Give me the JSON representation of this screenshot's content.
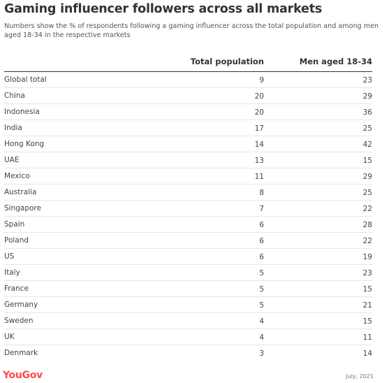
{
  "title": "Gaming influencer followers across all markets",
  "subtitle": "Numbers show the % of respondents following a gaming influencer across the total population and among men aged 18-34 in the respective markets",
  "columns": {
    "total": "Total population",
    "men": "Men aged 18-34"
  },
  "brand": {
    "name": "YouGov",
    "color": "#ff4b4b"
  },
  "date": "July, 2021",
  "chart_data": {
    "type": "table",
    "title": "Gaming influencer followers across all markets",
    "columns": [
      "Total population",
      "Men aged 18-34"
    ],
    "rows": [
      {
        "country": "Global total",
        "total": 9,
        "men": 23
      },
      {
        "country": "China",
        "total": 20,
        "men": 29
      },
      {
        "country": "Indonesia",
        "total": 20,
        "men": 36
      },
      {
        "country": "India",
        "total": 17,
        "men": 25
      },
      {
        "country": "Hong Kong",
        "total": 14,
        "men": 42
      },
      {
        "country": "UAE",
        "total": 13,
        "men": 15
      },
      {
        "country": "Mexico",
        "total": 11,
        "men": 29
      },
      {
        "country": "Australia",
        "total": 8,
        "men": 25
      },
      {
        "country": "Singapore",
        "total": 7,
        "men": 22
      },
      {
        "country": "Spain",
        "total": 6,
        "men": 28
      },
      {
        "country": "Poland",
        "total": 6,
        "men": 22
      },
      {
        "country": "US",
        "total": 6,
        "men": 19
      },
      {
        "country": "Italy",
        "total": 5,
        "men": 23
      },
      {
        "country": "France",
        "total": 5,
        "men": 15
      },
      {
        "country": "Germany",
        "total": 5,
        "men": 21
      },
      {
        "country": "Sweden",
        "total": 4,
        "men": 15
      },
      {
        "country": "UK",
        "total": 4,
        "men": 11
      },
      {
        "country": "Denmark",
        "total": 3,
        "men": 14
      }
    ]
  }
}
